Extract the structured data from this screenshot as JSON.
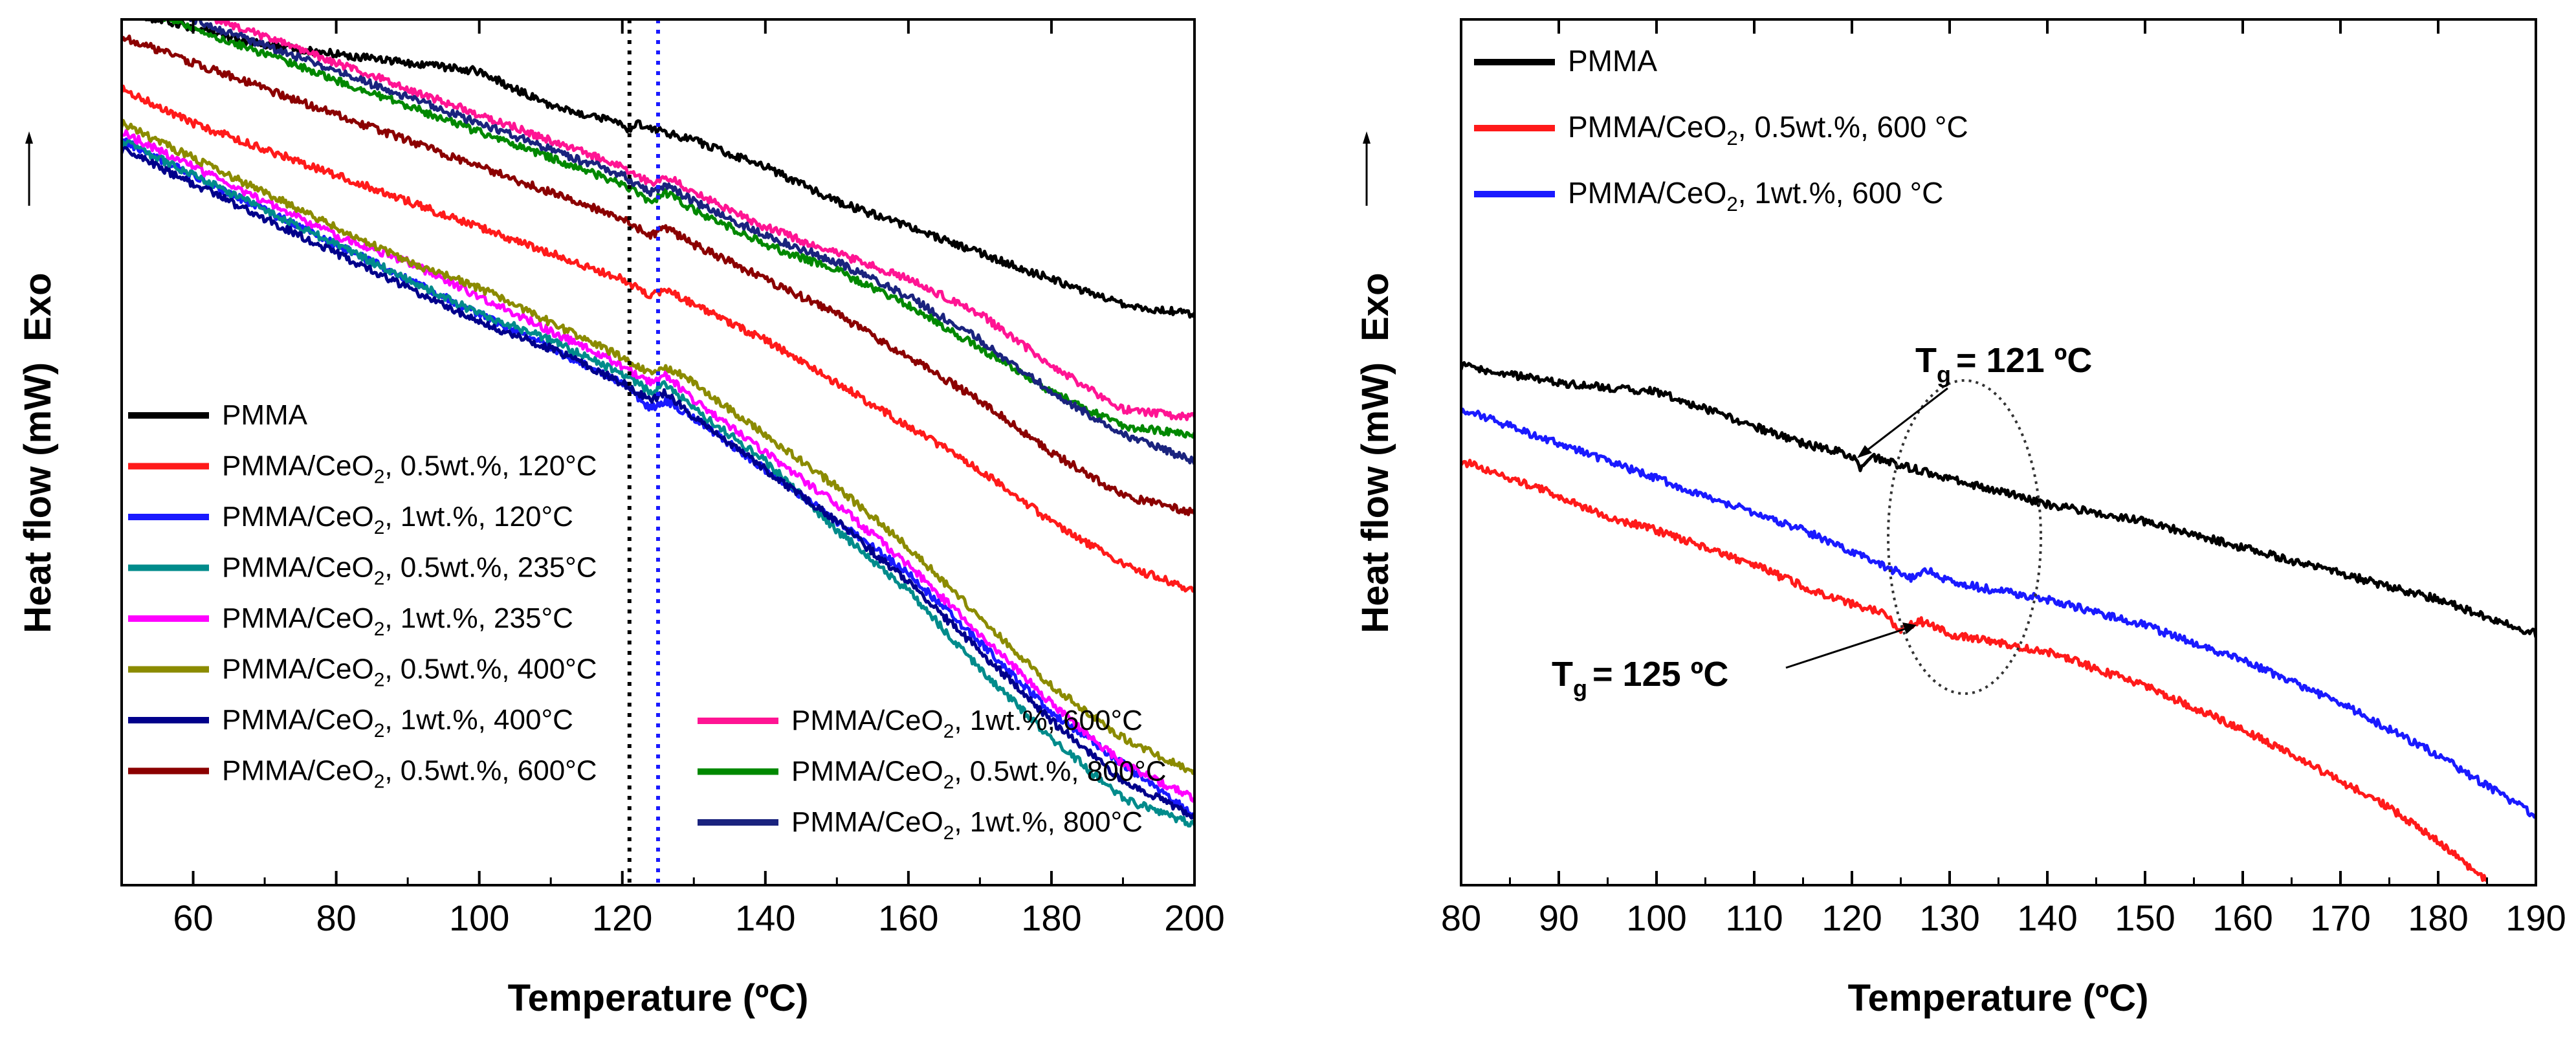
{
  "chart_data": [
    {
      "type": "line",
      "title": "",
      "xlabel": "Temperature (ºC)",
      "ylabel": "Heat flow (mW)",
      "ylabel_suffix": "Exo",
      "xlim": [
        50,
        200
      ],
      "ylim": [
        0,
        100
      ],
      "y_ticks_shown": false,
      "x_ticks": [
        "60",
        "80",
        "100",
        "120",
        "140",
        "160",
        "180",
        "200"
      ],
      "grid": false,
      "legend_position": "bottom-left (two columns)",
      "reference_lines": [
        {
          "x": 121,
          "color": "#000000",
          "style": "dotted"
        },
        {
          "x": 125,
          "color": "#1a1aff",
          "style": "dotted"
        }
      ],
      "series": [
        {
          "name": "PMMA",
          "color": "#000000",
          "x": [
            50,
            60,
            70,
            80,
            90,
            100,
            110,
            120,
            121,
            122,
            130,
            140,
            150,
            160,
            170,
            180,
            190,
            200
          ],
          "y": [
            101,
            99,
            97,
            96,
            95,
            94,
            90,
            88,
            87,
            88,
            86,
            83,
            79,
            76,
            73,
            70,
            67,
            66
          ]
        },
        {
          "name": "PMMA/CeO₂, 0.5wt.%, 120°C",
          "color": "#ff1a1a",
          "x": [
            50,
            60,
            70,
            80,
            90,
            100,
            110,
            120,
            124,
            126,
            130,
            140,
            150,
            160,
            170,
            180,
            190,
            200
          ],
          "y": [
            92,
            88,
            85,
            82,
            79,
            76,
            73,
            70,
            68,
            69,
            67,
            63,
            58,
            53,
            48,
            42,
            37,
            34
          ]
        },
        {
          "name": "PMMA/CeO₂, 1wt.%, 120°C",
          "color": "#1a1aff",
          "x": [
            50,
            60,
            70,
            80,
            90,
            100,
            110,
            120,
            124,
            126,
            130,
            140,
            150,
            160,
            170,
            180,
            190,
            200
          ],
          "y": [
            86,
            82,
            78,
            74,
            70,
            66,
            62,
            58,
            55,
            56,
            54,
            48,
            42,
            36,
            28,
            20,
            14,
            8
          ]
        },
        {
          "name": "PMMA/CeO₂, 0.5wt.%, 235°C",
          "color": "#008b8b",
          "x": [
            50,
            60,
            70,
            80,
            90,
            100,
            110,
            120,
            124,
            126,
            130,
            140,
            150,
            160,
            170,
            180,
            190,
            200
          ],
          "y": [
            86,
            82,
            78,
            74,
            70,
            66,
            63,
            59,
            57,
            58,
            55,
            49,
            41,
            34,
            25,
            17,
            10,
            7
          ]
        },
        {
          "name": "PMMA/CeO₂, 1wt.%, 235°C",
          "color": "#ff00ff",
          "x": [
            50,
            60,
            70,
            80,
            90,
            100,
            110,
            120,
            124,
            126,
            130,
            140,
            150,
            160,
            170,
            180,
            190,
            200
          ],
          "y": [
            87,
            83,
            79,
            75,
            72,
            68,
            64,
            60,
            58,
            59,
            56,
            50,
            44,
            37,
            29,
            21,
            14,
            10
          ]
        },
        {
          "name": "PMMA/CeO₂, 0.5wt.%, 400°C",
          "color": "#8b8b00",
          "x": [
            50,
            60,
            70,
            80,
            90,
            100,
            110,
            120,
            124,
            126,
            130,
            140,
            150,
            160,
            170,
            180,
            190,
            200
          ],
          "y": [
            88,
            84,
            80,
            76,
            72,
            69,
            65,
            61,
            59,
            60,
            58,
            52,
            46,
            39,
            31,
            23,
            17,
            13
          ]
        },
        {
          "name": "PMMA/CeO₂, 1wt.%, 400°C",
          "color": "#00008b",
          "x": [
            50,
            60,
            70,
            80,
            90,
            100,
            110,
            120,
            124,
            126,
            130,
            140,
            150,
            160,
            170,
            180,
            190,
            200
          ],
          "y": [
            85,
            81,
            77,
            73,
            69,
            65,
            62,
            58,
            56,
            57,
            54,
            48,
            42,
            35,
            27,
            19,
            12,
            8
          ]
        },
        {
          "name": "PMMA/CeO₂, 0.5wt.%, 600°C",
          "color": "#8b0000",
          "x": [
            50,
            60,
            70,
            80,
            90,
            100,
            110,
            120,
            124,
            126,
            130,
            140,
            150,
            160,
            170,
            180,
            190,
            200
          ],
          "y": [
            98,
            95,
            92,
            89,
            86,
            83,
            80,
            77,
            75,
            76,
            74,
            70,
            66,
            61,
            56,
            50,
            45,
            43
          ]
        },
        {
          "name": "PMMA/CeO₂, 1wt.%, 600°C",
          "color": "#ff1493",
          "x": [
            50,
            60,
            70,
            80,
            90,
            100,
            110,
            120,
            124,
            126,
            130,
            140,
            150,
            160,
            170,
            180,
            190,
            200
          ],
          "y": [
            104,
            101,
            98,
            95,
            92,
            89,
            86,
            83,
            81,
            82,
            80,
            76,
            73,
            70,
            66,
            60,
            55,
            54
          ]
        },
        {
          "name": "PMMA/CeO₂, 0.5wt.%, 800°C",
          "color": "#008800",
          "x": [
            50,
            60,
            70,
            80,
            90,
            100,
            110,
            120,
            124,
            126,
            130,
            140,
            150,
            160,
            170,
            180,
            190,
            200
          ],
          "y": [
            102,
            99,
            96,
            93,
            90,
            87,
            84,
            81,
            79,
            80,
            78,
            74,
            71,
            67,
            62,
            57,
            53,
            52
          ]
        },
        {
          "name": "PMMA/CeO₂, 1wt.%, 800°C",
          "color": "#1a237e",
          "x": [
            50,
            60,
            70,
            80,
            90,
            100,
            110,
            120,
            124,
            126,
            130,
            140,
            150,
            160,
            170,
            180,
            190,
            200
          ],
          "y": [
            103,
            100,
            97,
            94,
            91,
            88,
            85,
            82,
            80,
            81,
            79,
            75,
            72,
            68,
            63,
            57,
            52,
            49
          ]
        }
      ]
    },
    {
      "type": "line",
      "title": "",
      "xlabel": "Temperature (ºC)",
      "ylabel": "Heat flow (mW)",
      "ylabel_suffix": "Exo",
      "xlim": [
        80,
        190
      ],
      "ylim": [
        0,
        100
      ],
      "y_ticks_shown": false,
      "x_ticks": [
        "80",
        "90",
        "100",
        "110",
        "120",
        "130",
        "140",
        "150",
        "160",
        "170",
        "180",
        "190"
      ],
      "grid": false,
      "legend_position": "top-left",
      "series": [
        {
          "name": "PMMA",
          "color": "#000000",
          "x": [
            80,
            85,
            90,
            95,
            100,
            105,
            110,
            115,
            119,
            120,
            121,
            122,
            125,
            130,
            140,
            150,
            160,
            170,
            180,
            190
          ],
          "y": [
            60,
            59,
            58,
            57.5,
            57,
            55,
            53,
            51,
            50,
            49.5,
            48,
            49.5,
            48.5,
            47,
            44,
            42,
            39,
            36,
            33,
            29
          ]
        },
        {
          "name": "PMMA/CeO₂, 1wt.%, 600 °C",
          "color": "#1a1aff",
          "x": [
            80,
            85,
            90,
            95,
            100,
            105,
            110,
            115,
            120,
            124,
            126,
            128,
            130,
            135,
            140,
            150,
            160,
            170,
            180,
            190
          ],
          "y": [
            55,
            53,
            51,
            49,
            47,
            45,
            43,
            41,
            38.5,
            36.5,
            35.5,
            36.5,
            35,
            34,
            33,
            30,
            26,
            21,
            15,
            8
          ]
        },
        {
          "name": "PMMA/CeO₂, 0.5wt.%, 600 °C",
          "color": "#ff1a1a",
          "x": [
            80,
            85,
            90,
            95,
            100,
            105,
            110,
            115,
            120,
            123,
            125,
            127,
            130,
            135,
            140,
            150,
            160,
            170,
            175,
            180,
            185
          ],
          "y": [
            49,
            47,
            45,
            42.5,
            41,
            39,
            37,
            34.5,
            32.5,
            31.5,
            29.5,
            30.5,
            29,
            28,
            27,
            23,
            18,
            12,
            9,
            5,
            0.5
          ]
        }
      ],
      "annotations": [
        {
          "text_main": "T",
          "text_sub": "g",
          "text_rest": "= 121 ºC"
        },
        {
          "text_main": "T",
          "text_sub": "g",
          "text_rest": "= 125 ºC"
        }
      ]
    }
  ]
}
